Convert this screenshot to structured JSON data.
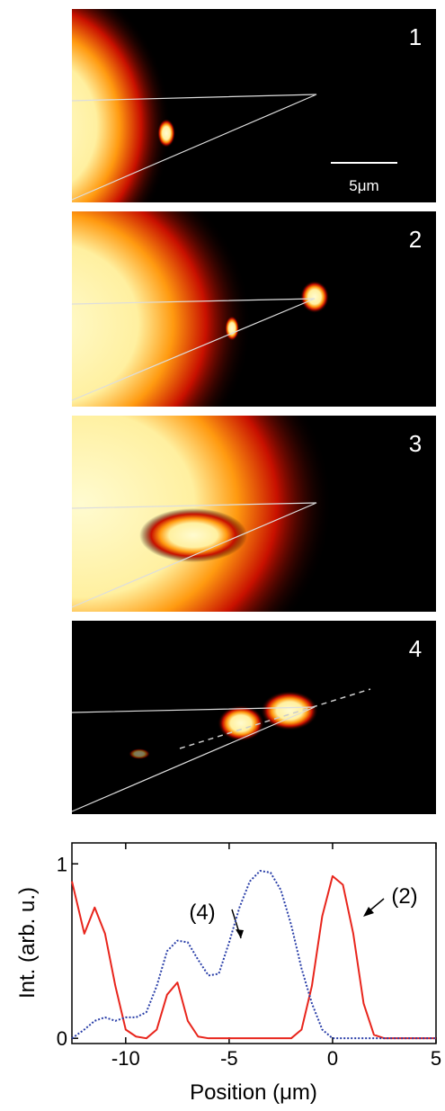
{
  "panels": [
    {
      "label": "1"
    },
    {
      "label": "2"
    },
    {
      "label": "3"
    },
    {
      "label": "4"
    }
  ],
  "scale_bar": "5μm",
  "chart_data": {
    "type": "line",
    "x": [
      -12.6,
      -12,
      -11.5,
      -11,
      -10.5,
      -10,
      -9.5,
      -9,
      -8.5,
      -8,
      -7.5,
      -7,
      -6.5,
      -6,
      -5.5,
      -5,
      -4.5,
      -4,
      -3.5,
      -3,
      -2.5,
      -2,
      -1.5,
      -1,
      -0.5,
      0,
      0.5,
      1,
      1.5,
      2,
      2.5,
      3,
      4,
      5
    ],
    "series": [
      {
        "name": "(2)",
        "color": "#e8251c",
        "dash": "solid",
        "values": [
          0.9,
          0.6,
          0.75,
          0.6,
          0.3,
          0.05,
          0.01,
          0,
          0.05,
          0.25,
          0.32,
          0.1,
          0.01,
          0,
          0,
          0,
          0,
          0,
          0,
          0,
          0,
          0,
          0.05,
          0.3,
          0.7,
          0.93,
          0.88,
          0.6,
          0.2,
          0.02,
          0,
          0,
          0,
          0
        ]
      },
      {
        "name": "(4)",
        "color": "#2a3fa8",
        "dash": "dotted",
        "values": [
          0,
          0.05,
          0.1,
          0.12,
          0.1,
          0.12,
          0.12,
          0.15,
          0.3,
          0.5,
          0.56,
          0.55,
          0.45,
          0.36,
          0.37,
          0.55,
          0.75,
          0.9,
          0.96,
          0.95,
          0.85,
          0.65,
          0.4,
          0.2,
          0.05,
          0,
          0,
          0,
          0,
          0,
          0,
          0,
          0,
          0
        ]
      }
    ],
    "xlabel": "Position (μm)",
    "ylabel": "Int. (arb. u.)",
    "xlim": [
      -12.6,
      5
    ],
    "ylim": [
      -0.03,
      1.12
    ],
    "xticks": [
      -10,
      -5,
      0,
      5
    ],
    "yticks": [
      0,
      1
    ]
  }
}
